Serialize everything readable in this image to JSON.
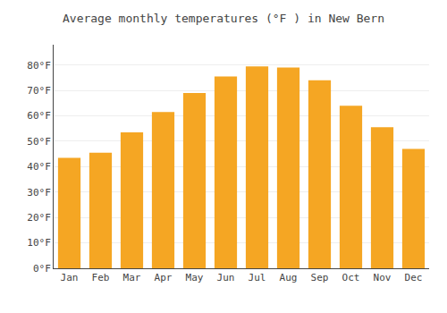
{
  "chart_data": {
    "type": "bar",
    "title": "Average monthly temperatures (°F ) in New Bern",
    "categories": [
      "Jan",
      "Feb",
      "Mar",
      "Apr",
      "May",
      "Jun",
      "Jul",
      "Aug",
      "Sep",
      "Oct",
      "Nov",
      "Dec"
    ],
    "values": [
      43.5,
      45.5,
      53.5,
      61.5,
      69.0,
      75.5,
      79.5,
      79.0,
      74.0,
      64.0,
      55.5,
      47.0
    ],
    "color": "#F5A623",
    "ylim": [
      0,
      88
    ],
    "yticks": [
      {
        "value": 0,
        "label": "0°F"
      },
      {
        "value": 10,
        "label": "10°F"
      },
      {
        "value": 20,
        "label": "20°F"
      },
      {
        "value": 30,
        "label": "30°F"
      },
      {
        "value": 40,
        "label": "40°F"
      },
      {
        "value": 50,
        "label": "50°F"
      },
      {
        "value": 60,
        "label": "60°F"
      },
      {
        "value": 70,
        "label": "70°F"
      },
      {
        "value": 80,
        "label": "80°F"
      }
    ],
    "grid": true
  }
}
